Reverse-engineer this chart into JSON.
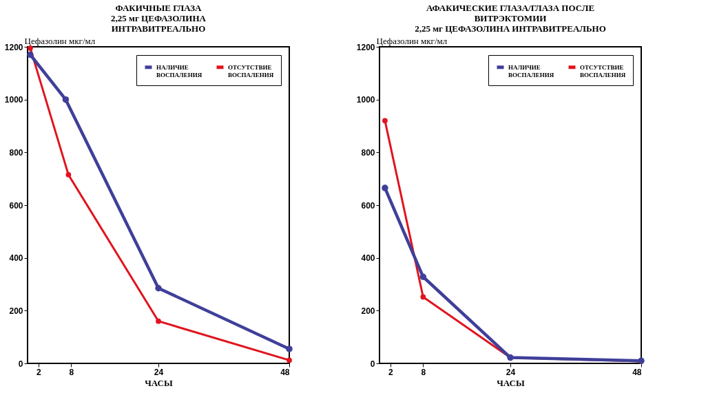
{
  "chart_data": [
    {
      "type": "line",
      "title": [
        "ФАКИЧНЫЕ ГЛАЗА",
        "2,25 мг ЦЕФАЗОЛИНА",
        "ИНТРАВИТРЕАЛЬНО"
      ],
      "xlabel": "ЧАСЫ",
      "ylabel": "Цефазолин мкг/мл",
      "xlim": [
        0,
        48
      ],
      "xticks": [
        2,
        8,
        24,
        48
      ],
      "ylim": [
        0,
        1200
      ],
      "yticks": [
        0,
        200,
        400,
        600,
        800,
        1000,
        1200
      ],
      "grid": false,
      "legend": "top right",
      "marker": "circle",
      "series": [
        {
          "name": "НАЛИЧИЕ ВОСПАЛЕНИЯ",
          "color": "#3f3f9a",
          "x": [
            0.5,
            7,
            24,
            48
          ],
          "values": [
            1170,
            1000,
            285,
            55
          ]
        },
        {
          "name": "ОТСУТСТВИЕ ВОСПАЛЕНИЯ",
          "color": "#e0141e",
          "x": [
            0.5,
            7.5,
            24,
            48
          ],
          "values": [
            1195,
            715,
            160,
            12
          ]
        }
      ]
    },
    {
      "type": "line",
      "title": [
        "АФАКИЧЕСКИЕ ГЛАЗА/ГЛАЗА ПОСЛЕ",
        "ВИТРЭКТОМИИ",
        "2,25 мг ЦЕФАЗОЛИНА ИНТРАВИТРЕАЛЬНО"
      ],
      "xlabel": "ЧАСЫ",
      "ylabel": "Цефазолин мкг/мл",
      "xlim": [
        0,
        48
      ],
      "xticks": [
        2,
        8,
        24,
        48
      ],
      "ylim": [
        0,
        1200
      ],
      "yticks": [
        0,
        200,
        400,
        600,
        800,
        1000,
        1200
      ],
      "grid": false,
      "legend": "top right",
      "marker": "circle",
      "series": [
        {
          "name": "НАЛИЧИЕ ВОСПАЛЕНИЯ",
          "color": "#3f3f9a",
          "x": [
            1,
            8,
            24,
            48
          ],
          "values": [
            665,
            328,
            22,
            10
          ]
        },
        {
          "name": "ОТСУТСТВИЕ ВОСПАЛЕНИЯ",
          "color": "#e0141e",
          "x": [
            1,
            8,
            24,
            48
          ],
          "values": [
            920,
            252,
            22,
            8
          ]
        }
      ]
    }
  ]
}
